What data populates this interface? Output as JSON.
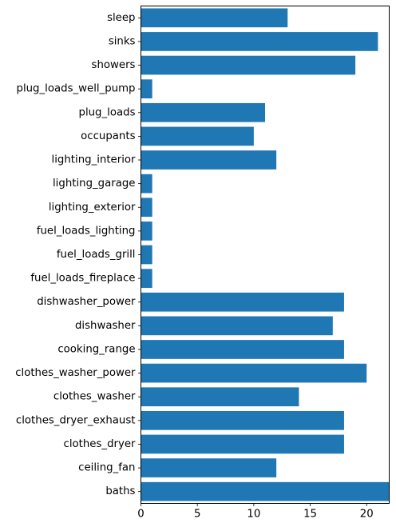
{
  "chart_data": {
    "type": "bar",
    "orientation": "horizontal",
    "title": "",
    "xlabel": "",
    "ylabel": "",
    "categories": [
      "sleep",
      "sinks",
      "showers",
      "plug_loads_well_pump",
      "plug_loads",
      "occupants",
      "lighting_interior",
      "lighting_garage",
      "lighting_exterior",
      "fuel_loads_lighting",
      "fuel_loads_grill",
      "fuel_loads_fireplace",
      "dishwasher_power",
      "dishwasher",
      "cooking_range",
      "clothes_washer_power",
      "clothes_washer",
      "clothes_dryer_exhaust",
      "clothes_dryer",
      "ceiling_fan",
      "baths"
    ],
    "values": [
      13,
      21,
      19,
      1,
      11,
      10,
      12,
      1,
      1,
      1,
      1,
      1,
      18,
      17,
      18,
      20,
      14,
      18,
      18,
      12,
      22
    ],
    "xlim": [
      0,
      22
    ],
    "xticks": [
      0,
      5,
      10,
      15,
      20
    ],
    "grid": false,
    "bar_color": "#1f77b4"
  }
}
